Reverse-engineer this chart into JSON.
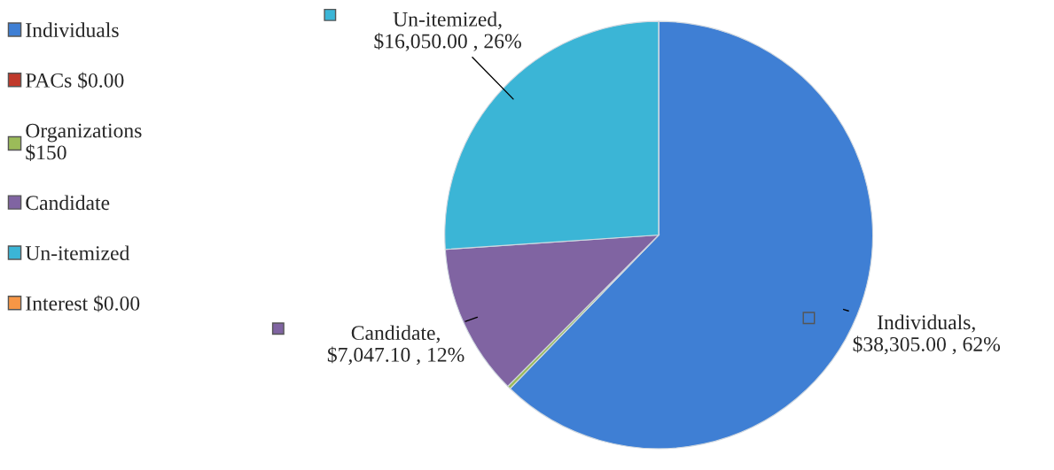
{
  "chart_data": {
    "type": "pie",
    "categories": [
      "Individuals",
      "PACs $0.00",
      "Organizations $150",
      "Candidate",
      "Un-itemized",
      "Interest $0.00"
    ],
    "values": [
      38305.0,
      0,
      150,
      7047.1,
      16050.0,
      0
    ],
    "colors": [
      "#3f7fd4",
      "#c0392b",
      "#9bbb59",
      "#8064a2",
      "#3bb5d6",
      "#f79646"
    ],
    "value_labels": [
      "Individuals, $38,305.00 , 62%",
      null,
      null,
      "Candidate, $7,047.10 , 12%",
      "Un-itemized, $16,050.00 , 26%",
      null
    ],
    "legend": "left"
  }
}
